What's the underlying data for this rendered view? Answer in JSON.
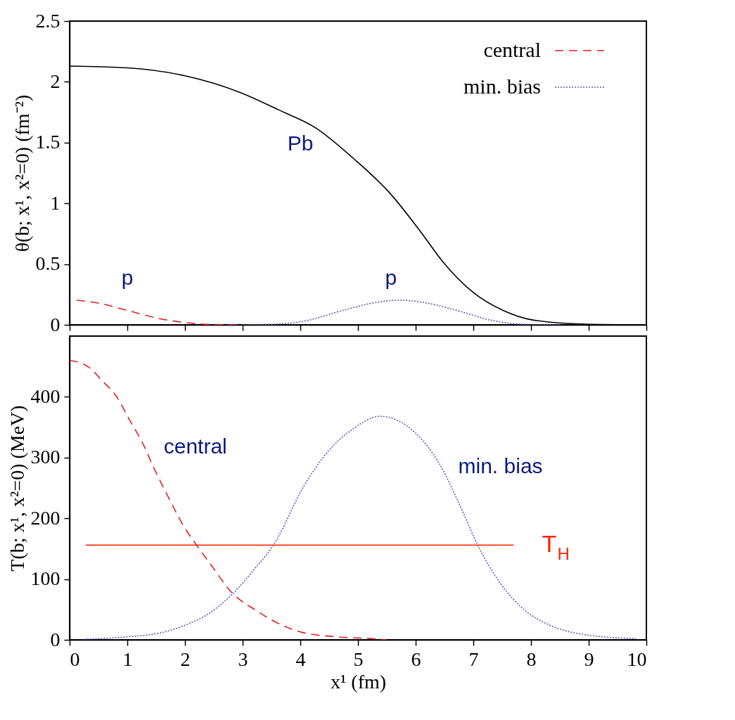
{
  "chart_data": [
    {
      "type": "line",
      "ylabel": "θ(b; x¹, x²=0) (fm⁻²)",
      "xlim": [
        0,
        10
      ],
      "xticks": [
        0,
        1,
        2,
        3,
        4,
        5,
        6,
        7,
        8,
        9,
        10
      ],
      "ylim": [
        0,
        2.5
      ],
      "yticks": [
        0,
        0.5,
        1,
        1.5,
        2,
        2.5
      ],
      "tick_labels": "y",
      "grid": false,
      "legend": "top right",
      "marker": "none",
      "series": [
        {
          "color": "#000000",
          "line_style": "solid",
          "x": [
            0,
            1,
            2,
            2.97,
            3.62,
            4.27,
            4.92,
            5.56,
            6.08,
            6.47,
            6.99,
            7.51,
            8.03,
            8.94,
            10
          ],
          "values": [
            2.13,
            2.115,
            2.05,
            1.91,
            1.77,
            1.62,
            1.37,
            1.08,
            0.77,
            0.52,
            0.27,
            0.12,
            0.04,
            0.006,
            0
          ]
        },
        {
          "name": "central",
          "color": "#e02020",
          "line_style": "dashed",
          "x": [
            0.12,
            0.51,
            1.02,
            1.54,
            2.06,
            2.45,
            3.0
          ],
          "values": [
            0.203,
            0.178,
            0.116,
            0.053,
            0.016,
            0.003,
            0
          ]
        },
        {
          "name": "min. bias",
          "color": "#6655bb",
          "line_style": "dotted",
          "x": [
            3.0,
            3.42,
            4.07,
            4.72,
            5.24,
            5.73,
            6.21,
            6.73,
            7.32,
            7.96,
            8.5
          ],
          "values": [
            0,
            0.003,
            0.031,
            0.116,
            0.178,
            0.203,
            0.178,
            0.116,
            0.037,
            0.003,
            0
          ]
        }
      ],
      "annotations": [
        "Pb",
        "p",
        "p"
      ]
    },
    {
      "type": "line",
      "xlabel": "x¹ (fm)",
      "ylabel": "T(b; x¹, x²=0) (MeV)",
      "xlim": [
        0,
        10
      ],
      "xticks": [
        0,
        1,
        2,
        3,
        4,
        5,
        6,
        7,
        8,
        9,
        10
      ],
      "ylim": [
        0,
        500
      ],
      "yticks": [
        0,
        100,
        200,
        300,
        400
      ],
      "grid": false,
      "marker": "none",
      "series": [
        {
          "color": "#e02020",
          "line_style": "dashed",
          "x": [
            0,
            0.33,
            0.57,
            0.81,
            1.05,
            1.27,
            1.45,
            1.69,
            1.96,
            2.2,
            2.44,
            2.8,
            3.24,
            3.64,
            4.04,
            4.63,
            5.23,
            5.5
          ],
          "values": [
            460,
            449,
            426,
            401,
            360,
            323,
            285,
            239,
            190,
            156,
            125,
            79,
            48,
            26,
            12,
            5,
            2,
            0
          ]
        },
        {
          "color": "#6655bb",
          "line_style": "dotted",
          "x": [
            0.25,
            1.0,
            1.6,
            2.0,
            2.44,
            2.84,
            3.2,
            3.54,
            4.06,
            4.48,
            4.91,
            5.38,
            5.98,
            6.41,
            6.83,
            7.07,
            7.47,
            7.9,
            8.33,
            8.97,
            9.82
          ],
          "values": [
            1,
            5,
            12,
            24,
            45,
            77,
            116,
            157,
            253,
            310,
            347,
            368,
            342,
            290,
            208,
            157,
            93,
            48,
            24,
            8,
            2
          ]
        },
        {
          "name": "T$_{H}$",
          "color": "#ff2000",
          "line_style": "solid",
          "x": [
            0.28,
            7.7
          ],
          "values": [
            156,
            156
          ]
        }
      ],
      "annotations": [
        "central",
        "min. bias"
      ]
    }
  ]
}
